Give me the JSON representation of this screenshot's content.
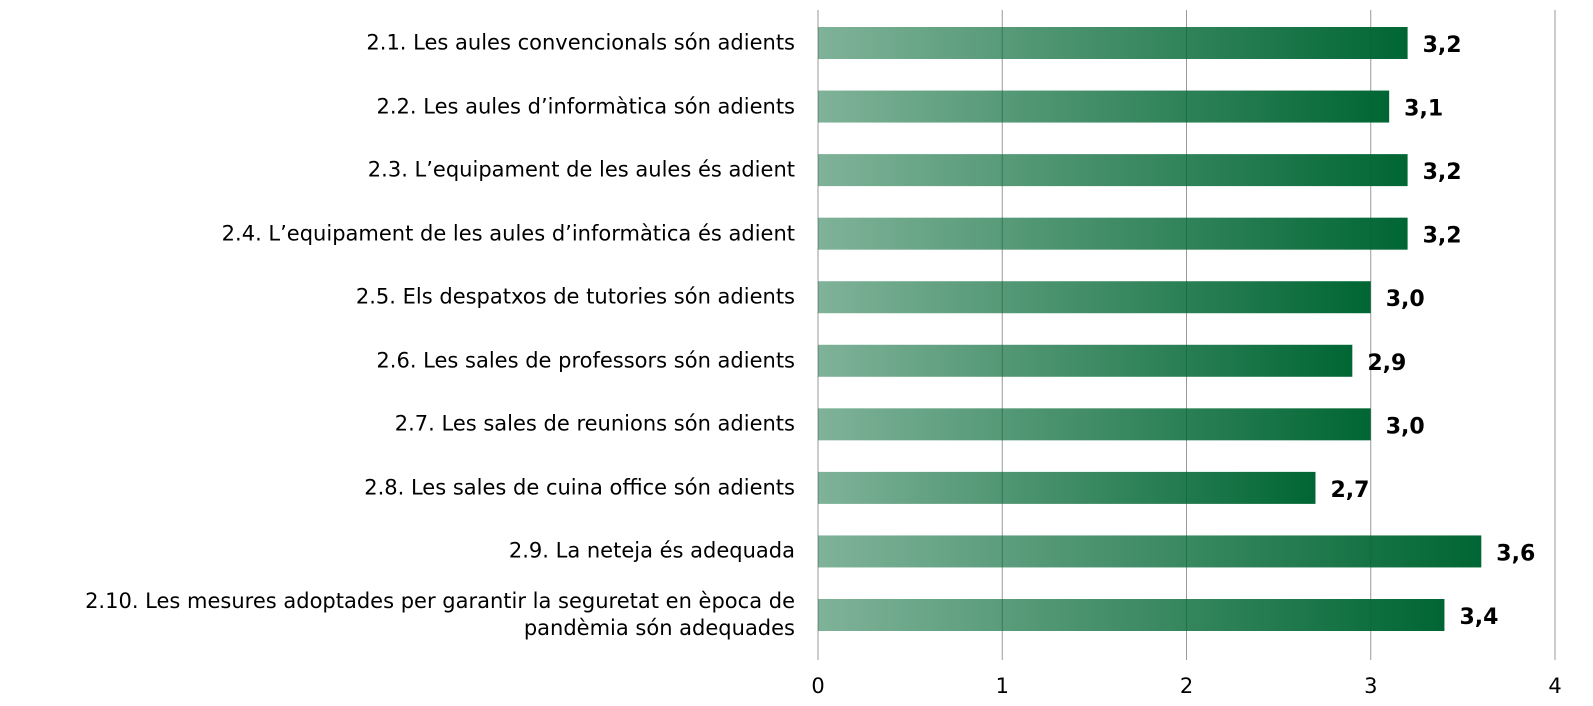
{
  "chart_data": {
    "type": "barh",
    "categories": [
      "2.1. Les aules convencionals són adients",
      "2.2. Les aules d’informàtica són adients",
      "2.3. L’equipament de les aules és adient",
      "2.4. L’equipament de les aules d’informàtica és adient",
      "2.5. Els despatxos de tutories són adients",
      "2.6. Les sales de professors són adients",
      "2.7. Les sales de reunions són adients",
      "2.8. Les sales de cuina office són adients",
      "2.9. La neteja és adequada",
      "2.10. Les mesures adoptades per garantir la seguretat en època de pandèmia són adequades"
    ],
    "values": [
      3.2,
      3.1,
      3.2,
      3.2,
      3.0,
      2.9,
      3.0,
      2.7,
      3.6,
      3.4
    ],
    "value_labels": [
      "3,2",
      "3,1",
      "3,2",
      "3,2",
      "3,0",
      "2,9",
      "3,0",
      "2,7",
      "3,6",
      "3,4"
    ],
    "color": "#006633",
    "xlim": [
      0,
      4
    ],
    "xticks": [
      0,
      1,
      2,
      3,
      4
    ],
    "grid": true
  }
}
